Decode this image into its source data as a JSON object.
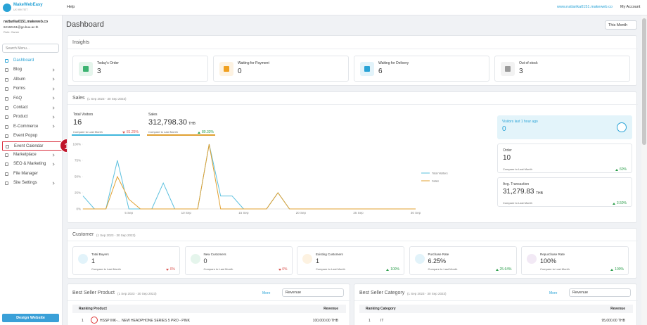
{
  "header": {
    "logo": "MakeWebEasy",
    "logo_tagline": "UX 999 7577",
    "help": "Help",
    "site_link": "www.nattarika0151.makeweb.co",
    "account": "My Account"
  },
  "sidebar": {
    "site": "nattarika0151.makeweb.co",
    "email": "62160151@go.buu.ac.th",
    "role": "Role: Owner",
    "search": "Search Menu...",
    "menu": [
      {
        "label": "Dashboard",
        "active": true
      },
      {
        "label": "Blog",
        "submenu": true
      },
      {
        "label": "Album",
        "submenu": true
      },
      {
        "label": "Forms",
        "submenu": true
      },
      {
        "label": "FAQ",
        "submenu": true
      },
      {
        "label": "Contact",
        "submenu": true
      },
      {
        "label": "Product",
        "submenu": true
      },
      {
        "label": "E-Commerce",
        "submenu": true
      },
      {
        "label": "Event Popup"
      },
      {
        "label": "Event Calendar",
        "highlight": true
      },
      {
        "label": "Marketplace",
        "submenu": true
      },
      {
        "label": "SEO & Marketing",
        "submenu": true
      },
      {
        "label": "File Manager"
      },
      {
        "label": "Site Settings",
        "submenu": true
      }
    ],
    "badge": "1",
    "design_button": "Design Website"
  },
  "page": {
    "title": "Dashboard",
    "period": "This Month"
  },
  "insights": {
    "title": "Insights",
    "cards": [
      {
        "label": "Today's Order",
        "value": "3",
        "color": "#3cb371"
      },
      {
        "label": "Waiting for Payment",
        "value": "0",
        "color": "#f0a020"
      },
      {
        "label": "Waiting for Delivery",
        "value": "6",
        "color": "#29a3d6"
      },
      {
        "label": "Out of stock",
        "value": "3",
        "color": "#9a9a9a"
      }
    ]
  },
  "sales": {
    "title": "Sales",
    "range": "(1 Sep 2023 - 30 Sep 2023)",
    "metrics": [
      {
        "label": "Total Visitors",
        "value": "16",
        "compare": "Compare to Last Month",
        "change": "81.25%",
        "trend": "down",
        "color": "#3fb6dc"
      },
      {
        "label": "Sales",
        "value": "312,798.30",
        "unit": "THB",
        "compare": "Compare to Last Month",
        "change": "80.33%",
        "trend": "up",
        "color": "#e0a030"
      }
    ],
    "chart": {
      "type": "line",
      "categories": [
        null,
        null,
        null,
        null,
        "5 Sep",
        null,
        null,
        null,
        null,
        "10 Sep",
        null,
        null,
        null,
        null,
        "15 Sep",
        null,
        null,
        null,
        null,
        "20 Sep",
        null,
        null,
        null,
        null,
        "25 Sep",
        null,
        null,
        null,
        null,
        "30 Sep"
      ],
      "series": [
        {
          "name": "Total Visitors",
          "color": "#5bc0de",
          "values": [
            20,
            0,
            0,
            75,
            0,
            0,
            0,
            40,
            0,
            0,
            0,
            100,
            20,
            20,
            0,
            0,
            0,
            25,
            0,
            0,
            0,
            0,
            0,
            0,
            0,
            0,
            0,
            0,
            0,
            0
          ]
        },
        {
          "name": "Sales",
          "color": "#e0a030",
          "values": [
            0,
            0,
            0,
            50,
            15,
            0,
            0,
            0,
            0,
            0,
            0,
            100,
            0,
            0,
            0,
            0,
            0,
            25,
            0,
            0,
            0,
            0,
            0,
            0,
            0,
            0,
            0,
            0,
            0,
            0
          ]
        }
      ],
      "ylim": [
        0,
        100
      ],
      "yticks": [
        {
          "value": 0,
          "label": "0%"
        },
        {
          "value": 25,
          "label": "25%"
        },
        {
          "value": 50,
          "label": "50%"
        },
        {
          "value": 75,
          "label": "75%"
        },
        {
          "value": 100,
          "label": "100%"
        }
      ],
      "grid": false
    },
    "side": [
      {
        "label": "Visitors last 1 hour ago",
        "value": "0"
      },
      {
        "label": "Order",
        "value": "10",
        "compare": "Compare to Last Month",
        "change": "60%",
        "trend": "up"
      },
      {
        "label": "Avg. Transaction",
        "value": "31,279.83",
        "unit": "THB",
        "compare": "Compare to Last Month",
        "change": "3.50%",
        "trend": "up"
      }
    ]
  },
  "customer": {
    "title": "Customer",
    "range": "(1 Sep 2023 - 30 Sep 2023)",
    "cards": [
      {
        "label": "Total Buyers",
        "value": "1",
        "compare": "Compare to Last Month",
        "change": "0%",
        "trend": "down",
        "color": "#29a3d6"
      },
      {
        "label": "New Customers",
        "value": "0",
        "compare": "Compare to Last Month",
        "change": "0%",
        "trend": "down",
        "color": "#3cb371"
      },
      {
        "label": "Existing Customers",
        "value": "1",
        "compare": "Compare to Last Month",
        "change": "100%",
        "trend": "up",
        "color": "#f0a020"
      },
      {
        "label": "Purchase Rate",
        "value": "6.25%",
        "compare": "Compare to Last Month",
        "change": "25.64%",
        "trend": "up",
        "color": "#29a3d6"
      },
      {
        "label": "Repurchase Rate",
        "value": "100%",
        "compare": "Compare to Last Month",
        "change": "100%",
        "trend": "up",
        "color": "#9b59b6"
      }
    ]
  },
  "best_product": {
    "title": "Best Seller Product",
    "range": "(1 Sep 2023 - 30 Sep 2023)",
    "more": "More",
    "sort": "Revenue",
    "columns": [
      "Ranking",
      "Product",
      "Revenue"
    ],
    "rows": [
      [
        "1",
        "HSSP INK-...",
        "NEW HEADPHONE SERIES 5 PRO - PINK",
        "100,000.00 THB"
      ]
    ]
  },
  "best_category": {
    "title": "Best Seller Category",
    "range": "(1 Sep 2023 - 30 Sep 2023)",
    "more": "More",
    "sort": "Revenue",
    "columns": [
      "Ranking",
      "Category",
      "Revenue"
    ],
    "rows": [
      [
        "1",
        "IT",
        "95,000.00 THB"
      ]
    ]
  }
}
